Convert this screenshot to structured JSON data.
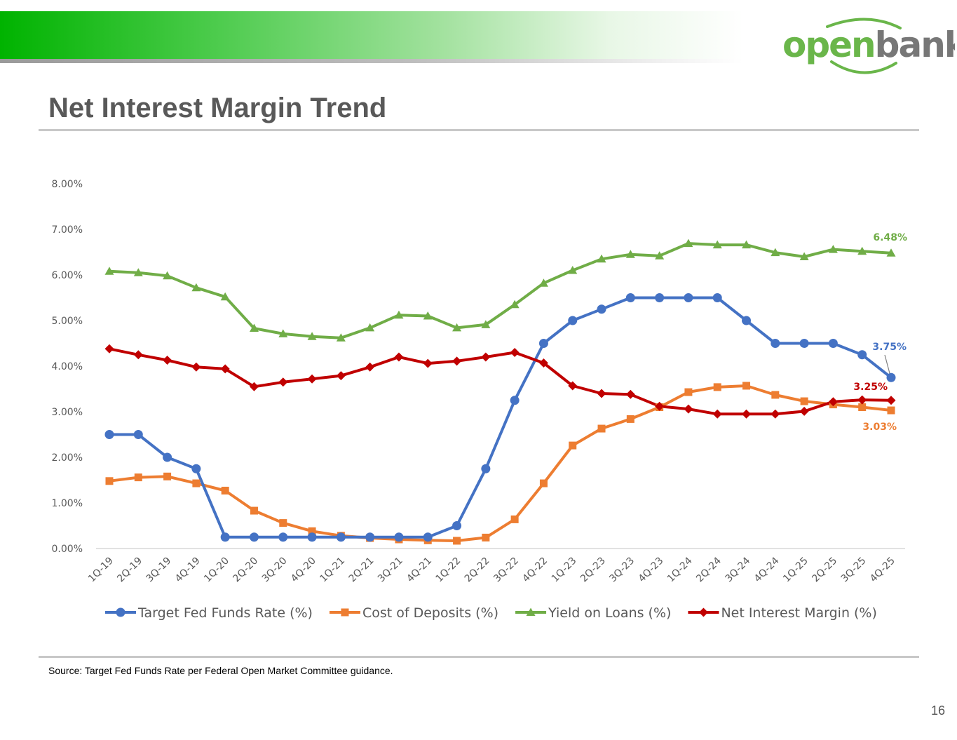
{
  "header": {
    "logo_word_1": "open",
    "logo_word_2": "bank",
    "brand_green": "#6ab64a",
    "brand_gray": "#777777"
  },
  "page": {
    "title": "Net Interest Margin Trend",
    "source_note": "Source: Target Fed Funds Rate per Federal Open Market Committee guidance.",
    "page_number": "16"
  },
  "chart_data": {
    "type": "line",
    "title": "",
    "xlabel": "",
    "ylabel": "",
    "ylim": [
      0,
      8
    ],
    "y_ticks": [
      "0.00%",
      "1.00%",
      "2.00%",
      "3.00%",
      "4.00%",
      "5.00%",
      "6.00%",
      "7.00%",
      "8.00%"
    ],
    "grid": false,
    "legend_position": "bottom",
    "categories": [
      "1Q-19",
      "2Q-19",
      "3Q-19",
      "4Q-19",
      "1Q-20",
      "2Q-20",
      "3Q-20",
      "4Q-20",
      "1Q-21",
      "2Q-21",
      "3Q-21",
      "4Q-21",
      "1Q-22",
      "2Q-22",
      "3Q-22",
      "4Q-22",
      "1Q-23",
      "2Q-23",
      "3Q-23",
      "4Q-23",
      "1Q-24",
      "2Q-24",
      "3Q-24",
      "4Q-24",
      "1Q-25",
      "2Q-25",
      "3Q-25",
      "4Q-25"
    ],
    "series": [
      {
        "name": "Target Fed Funds Rate (%)",
        "color": "#4472c4",
        "marker": "circle",
        "values": [
          2.5,
          2.5,
          2.0,
          1.75,
          0.25,
          0.25,
          0.25,
          0.25,
          0.25,
          0.25,
          0.25,
          0.25,
          0.5,
          1.75,
          3.25,
          4.5,
          5.0,
          5.25,
          5.5,
          5.5,
          5.5,
          5.5,
          5.0,
          4.5,
          4.5,
          4.5,
          4.25,
          3.75
        ],
        "end_label": "3.75%"
      },
      {
        "name": "Cost of Deposits (%)",
        "color": "#ed7d31",
        "marker": "square",
        "values": [
          1.48,
          1.56,
          1.58,
          1.43,
          1.27,
          0.83,
          0.56,
          0.38,
          0.28,
          0.23,
          0.2,
          0.18,
          0.17,
          0.24,
          0.64,
          1.43,
          2.26,
          2.63,
          2.84,
          3.1,
          3.43,
          3.54,
          3.57,
          3.37,
          3.23,
          3.16,
          3.1,
          3.03
        ],
        "end_label": "3.03%"
      },
      {
        "name": "Yield on Loans (%)",
        "color": "#70ad47",
        "marker": "triangle",
        "values": [
          6.08,
          6.05,
          5.98,
          5.72,
          5.52,
          4.83,
          4.71,
          4.65,
          4.62,
          4.84,
          5.12,
          5.1,
          4.84,
          4.91,
          5.35,
          5.82,
          6.1,
          6.35,
          6.45,
          6.42,
          6.69,
          6.66,
          6.66,
          6.49,
          6.4,
          6.56,
          6.52,
          6.48
        ],
        "end_label": "6.48%"
      },
      {
        "name": "Net Interest Margin (%)",
        "color": "#c00000",
        "marker": "diamond",
        "values": [
          4.38,
          4.25,
          4.13,
          3.98,
          3.94,
          3.55,
          3.65,
          3.72,
          3.79,
          3.98,
          4.2,
          4.06,
          4.11,
          4.2,
          4.3,
          4.07,
          3.57,
          3.4,
          3.38,
          3.12,
          3.06,
          2.95,
          2.95,
          2.95,
          3.01,
          3.22,
          3.26,
          3.25
        ],
        "end_label": "3.25%"
      }
    ]
  }
}
